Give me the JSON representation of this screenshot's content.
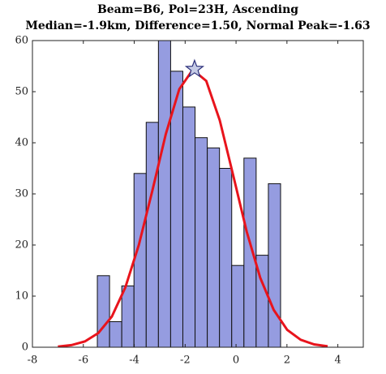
{
  "chart_data": {
    "type": "histogram",
    "title": [
      "Beam=B6, Pol=23H, Ascending",
      "Median=-1.9km, Difference=1.50, Normal Peak=-1.63"
    ],
    "bins": [
      -5.45,
      -4.97,
      -4.49,
      -4.01,
      -3.53,
      -3.05,
      -2.57,
      -2.09,
      -1.61,
      -1.13,
      -0.65,
      -0.17,
      0.31,
      0.79,
      1.27,
      1.75
    ],
    "counts": [
      14,
      5,
      12,
      34,
      44,
      60,
      54,
      47,
      41,
      39,
      35,
      16,
      37,
      18,
      32
    ],
    "color": "#959ce0",
    "curve": {
      "color": "#e8141c",
      "x": [
        -7,
        -6.47,
        -5.94,
        -5.41,
        -4.88,
        -4.35,
        -3.82,
        -3.29,
        -2.76,
        -2.23,
        -1.7,
        -1.17,
        -0.64,
        -0.11,
        0.42,
        0.95,
        1.48,
        2.01,
        2.54,
        3.07,
        3.6
      ],
      "y": [
        0.13,
        0.41,
        1.13,
        2.78,
        6.0,
        11.7,
        20.0,
        30.6,
        41.7,
        50.5,
        54.3,
        52.1,
        44.4,
        33.6,
        22.6,
        13.6,
        7.3,
        3.4,
        1.46,
        0.55,
        0.18
      ]
    },
    "peak": {
      "x": -1.63,
      "y": 54.4,
      "color": "#c5cbe6"
    },
    "xlim": [
      -8,
      5
    ],
    "ylim": [
      0,
      60
    ],
    "xticks": [
      -8,
      -6,
      -4,
      -2,
      0,
      2,
      4
    ],
    "yticks": [
      0,
      10,
      20,
      30,
      40,
      50,
      60
    ]
  }
}
